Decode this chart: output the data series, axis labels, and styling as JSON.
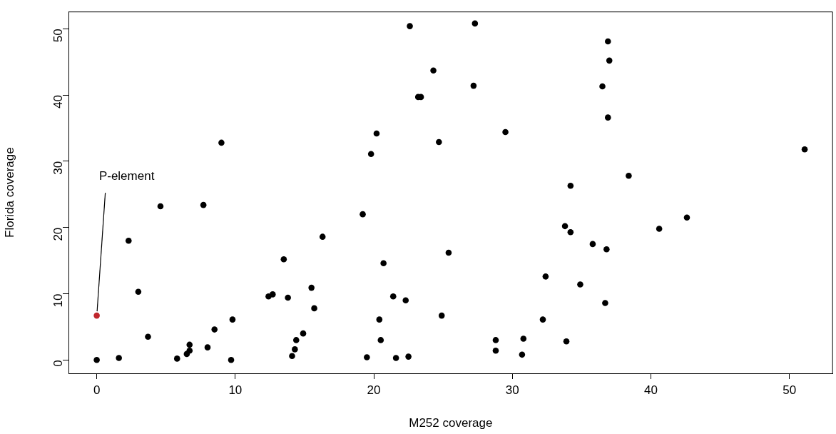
{
  "chart_data": {
    "type": "scatter",
    "xlabel": "M252 coverage",
    "ylabel": "Florida coverage",
    "xlim": [
      -2.04,
      53.14
    ],
    "ylim": [
      -2.02,
      52.6
    ],
    "xticks": [
      0,
      10,
      20,
      30,
      40,
      50
    ],
    "yticks": [
      0,
      10,
      20,
      30,
      40,
      50
    ],
    "grid": false,
    "legend": false,
    "marker": "circle",
    "annotations": [
      {
        "text": "P-element",
        "x": 0,
        "y": 6.7
      }
    ],
    "series": [
      {
        "color": "#000000",
        "x": [
          0,
          1.6,
          2.3,
          3.0,
          3.7,
          4.6,
          5.8,
          6.5,
          6.7,
          6.7,
          7.7,
          8.0,
          8.5,
          9.0,
          9.7,
          9.8,
          12.4,
          12.7,
          13.5,
          13.8,
          14.1,
          14.3,
          14.4,
          14.9,
          15.5,
          15.7,
          16.3,
          19.2,
          19.5,
          20.4,
          20.5,
          20.7,
          21.4,
          21.6,
          22.3,
          22.5,
          19.8,
          20.2,
          22.6,
          23.2,
          23.4,
          27.3,
          36.9,
          37.0,
          24.3,
          27.2,
          36.5,
          36.9,
          29.5,
          24.7,
          51.1,
          38.4,
          34.2,
          42.6,
          33.8,
          34.2,
          40.6,
          35.8,
          36.8,
          25.4,
          32.4,
          34.9,
          36.7,
          24.9,
          32.2,
          28.8,
          30.8,
          33.9,
          28.8,
          30.7
        ],
        "values": [
          0,
          0.3,
          18.0,
          10.3,
          3.5,
          23.2,
          0.2,
          0.9,
          1.4,
          2.3,
          23.4,
          1.9,
          4.6,
          32.8,
          0,
          6.1,
          9.6,
          9.9,
          15.2,
          9.4,
          0.6,
          1.6,
          3.0,
          4.0,
          10.9,
          7.8,
          18.6,
          22.0,
          0.4,
          6.1,
          3.0,
          14.6,
          9.6,
          0.3,
          9.0,
          0.5,
          31.1,
          34.2,
          50.4,
          39.7,
          39.7,
          50.8,
          48.1,
          45.2,
          43.7,
          41.4,
          41.3,
          36.6,
          34.4,
          32.9,
          31.8,
          27.8,
          26.3,
          21.5,
          20.2,
          19.3,
          19.8,
          17.5,
          16.7,
          16.2,
          12.6,
          11.4,
          8.6,
          6.7,
          6.1,
          3.0,
          3.2,
          2.8,
          1.4,
          0.8
        ]
      },
      {
        "color": "#c0272d",
        "x": [
          0
        ],
        "values": [
          6.7
        ]
      }
    ]
  }
}
